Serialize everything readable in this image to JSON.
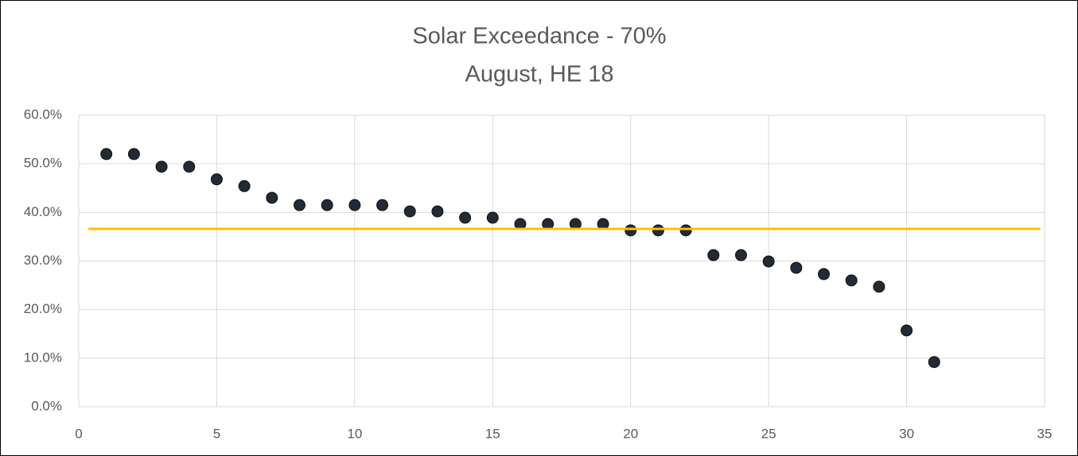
{
  "chart_data": {
    "type": "scatter",
    "title": "Solar Exceedance - 70%",
    "subtitle": "August, HE 18",
    "series": [
      {
        "type": "scatter",
        "color": "#222a35",
        "x": [
          1,
          2,
          3,
          4,
          5,
          6,
          7,
          8,
          9,
          10,
          11,
          12,
          13,
          14,
          15,
          16,
          17,
          18,
          19,
          20,
          21,
          22,
          23,
          24,
          25,
          26,
          27,
          28,
          29,
          30,
          31
        ],
        "values": [
          52.0,
          52.0,
          49.4,
          49.4,
          46.8,
          45.4,
          43.0,
          41.5,
          41.5,
          41.5,
          41.5,
          40.2,
          40.2,
          38.9,
          38.9,
          37.6,
          37.6,
          37.6,
          37.6,
          36.3,
          36.3,
          36.3,
          31.2,
          31.2,
          29.9,
          28.6,
          27.3,
          26.0,
          24.7,
          15.7,
          9.2
        ]
      },
      {
        "type": "line",
        "color": "#ffc000",
        "x": [
          0.35,
          34.85
        ],
        "values": [
          36.6,
          36.6
        ]
      }
    ],
    "xlim": [
      0,
      35
    ],
    "xticks": [
      0,
      5,
      10,
      15,
      20,
      25,
      30,
      35
    ],
    "ylim": [
      0,
      60
    ],
    "yticks": [
      {
        "value": 0,
        "label": "0.0%"
      },
      {
        "value": 10,
        "label": "10.0%"
      },
      {
        "value": 20,
        "label": "20.0%"
      },
      {
        "value": 30,
        "label": "30.0%"
      },
      {
        "value": 40,
        "label": "40.0%"
      },
      {
        "value": 50,
        "label": "50.0%"
      },
      {
        "value": 60,
        "label": "60.0%"
      }
    ],
    "grid": true
  }
}
